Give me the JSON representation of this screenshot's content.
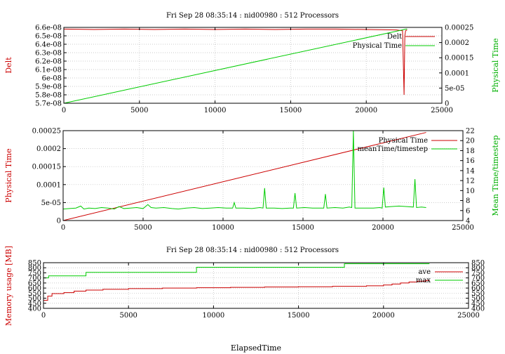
{
  "chart_data": [
    {
      "type": "line",
      "title": "Fri Sep 28 08:35:14 : nid00980 : 512 Processors",
      "ylabel": "Delt",
      "y2label": "Physical Time",
      "xlim": [
        0,
        25000
      ],
      "ylim": [
        5.7e-08,
        6.6e-08
      ],
      "y2lim": [
        0,
        0.00025
      ],
      "xticks": [
        "0",
        "5000",
        "10000",
        "15000",
        "20000",
        "25000"
      ],
      "yticks": [
        "5.7e-08",
        "5.8e-08",
        "5.9e-08",
        "6e-08",
        "6.1e-08",
        "6.2e-08",
        "6.3e-08",
        "6.4e-08",
        "6.5e-08",
        "6.6e-08"
      ],
      "y2ticks": [
        "0",
        "5e-05",
        "0.0001",
        "0.00015",
        "0.0002",
        "0.00025"
      ],
      "grid": true,
      "legend_position": "top-right",
      "series": [
        {
          "name": "Delt",
          "axis": "y",
          "color": "#cc0000",
          "x": [
            0,
            2000,
            4000,
            6000,
            8000,
            10000,
            12000,
            14000,
            16000,
            18000,
            20000,
            22000,
            22400,
            22500,
            22550,
            22600,
            22700
          ],
          "y": [
            6.58e-08,
            6.575e-08,
            6.58e-08,
            6.575e-08,
            6.58e-08,
            6.575e-08,
            6.58e-08,
            6.575e-08,
            6.58e-08,
            6.58e-08,
            6.575e-08,
            6.57e-08,
            6.56e-08,
            5.8e-08,
            6.5e-08,
            6.56e-08,
            6.57e-08
          ]
        },
        {
          "name": "Physical Time",
          "axis": "y2",
          "color": "#00cc00",
          "x": [
            0,
            22700
          ],
          "y": [
            0,
            0.000245
          ]
        }
      ]
    },
    {
      "type": "line",
      "ylabel": "Physical Time",
      "y2label": "Mean Time/timestep",
      "xlim": [
        0,
        25000
      ],
      "ylim": [
        0,
        0.00025
      ],
      "y2lim": [
        4,
        22
      ],
      "xticks": [
        "0",
        "5000",
        "10000",
        "15000",
        "20000",
        "25000"
      ],
      "yticks": [
        "0",
        "5e-05",
        "0.0001",
        "0.00015",
        "0.0002",
        "0.00025"
      ],
      "y2ticks": [
        "4",
        "6",
        "8",
        "10",
        "12",
        "14",
        "16",
        "18",
        "20",
        "22"
      ],
      "grid": true,
      "legend_position": "top-right",
      "series": [
        {
          "name": "Physical Time",
          "axis": "y",
          "color": "#cc0000",
          "x": [
            0,
            22700
          ],
          "y": [
            0,
            0.000245
          ]
        },
        {
          "name": "meanTime/timestep",
          "axis": "y2",
          "color": "#00cc00",
          "x": [
            0,
            400,
            800,
            1100,
            1300,
            1600,
            2000,
            2400,
            2800,
            3200,
            3500,
            3800,
            4200,
            4600,
            5000,
            5300,
            5500,
            5800,
            6300,
            6800,
            7200,
            7700,
            8200,
            8700,
            9200,
            9700,
            10200,
            10600,
            10700,
            10800,
            11300,
            11800,
            12300,
            12500,
            12600,
            12700,
            13200,
            13700,
            14200,
            14400,
            14500,
            14600,
            15100,
            15600,
            16100,
            16300,
            16400,
            16500,
            17000,
            17500,
            17900,
            18050,
            18150,
            18250,
            18400,
            18900,
            19400,
            19800,
            19950,
            20050,
            20150,
            20500,
            21000,
            21500,
            21900,
            22000,
            22100,
            22400,
            22700
          ],
          "y": [
            6.3,
            6.4,
            6.5,
            6.9,
            6.3,
            6.5,
            6.4,
            6.6,
            6.5,
            6.3,
            6.8,
            6.4,
            6.5,
            6.6,
            6.4,
            7.2,
            6.6,
            6.5,
            6.6,
            6.4,
            6.3,
            6.5,
            6.6,
            6.4,
            6.5,
            6.6,
            6.5,
            6.5,
            7.6,
            6.5,
            6.5,
            6.4,
            6.6,
            6.5,
            10.5,
            6.5,
            6.5,
            6.4,
            6.5,
            6.5,
            9.5,
            6.5,
            6.6,
            6.5,
            6.5,
            6.5,
            9.3,
            6.5,
            6.6,
            6.5,
            6.7,
            6.6,
            22,
            6.5,
            6.5,
            6.5,
            6.5,
            6.6,
            6.5,
            10.6,
            6.7,
            6.8,
            6.9,
            6.8,
            6.7,
            12.3,
            6.6,
            6.7,
            6.6
          ]
        }
      ]
    },
    {
      "type": "line",
      "title": "Fri Sep 28 08:35:14 : nid00980 : 512 Processors",
      "xlabel": "ElapsedTime",
      "ylabel": "Memory usage [MB]",
      "xlim": [
        0,
        25000
      ],
      "ylim": [
        400,
        850
      ],
      "y2lim": [
        400,
        850
      ],
      "xticks": [
        "0",
        "5000",
        "10000",
        "15000",
        "20000",
        "25000"
      ],
      "yticks": [
        "400",
        "450",
        "500",
        "550",
        "600",
        "650",
        "700",
        "750",
        "800",
        "850"
      ],
      "y2ticks": [
        "400",
        "450",
        "500",
        "550",
        "600",
        "650",
        "700",
        "750",
        "800",
        "850"
      ],
      "grid": true,
      "legend_position": "top-right",
      "series": [
        {
          "name": "ave",
          "axis": "y",
          "color": "#cc0000",
          "step": true,
          "x": [
            0,
            250,
            500,
            1200,
            1800,
            2500,
            3500,
            5000,
            7000,
            9000,
            11000,
            13000,
            15000,
            17000,
            19000,
            20000,
            20500,
            21000,
            21500,
            22000,
            22500,
            22700
          ],
          "y": [
            480,
            520,
            545,
            555,
            570,
            580,
            588,
            595,
            600,
            603,
            607,
            610,
            613,
            617,
            622,
            630,
            640,
            650,
            660,
            668,
            675,
            677
          ]
        },
        {
          "name": "max",
          "axis": "y",
          "color": "#00cc00",
          "step": true,
          "x": [
            0,
            300,
            600,
            2500,
            9000,
            17700,
            22700
          ],
          "y": [
            700,
            720,
            720,
            755,
            805,
            840,
            840
          ]
        }
      ]
    }
  ]
}
